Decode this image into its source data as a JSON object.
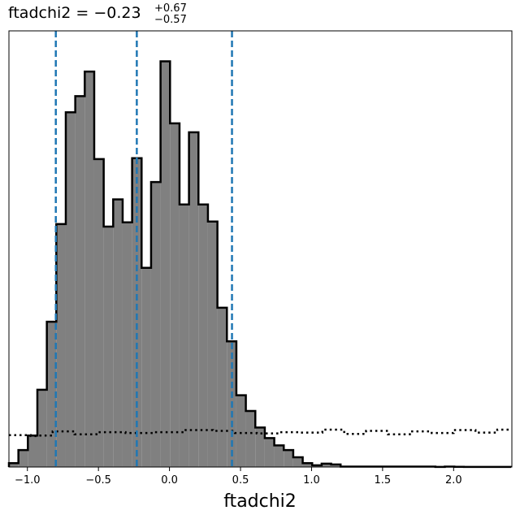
{
  "chart_data": {
    "type": "histogram",
    "title": {
      "main": "ftadchi2 = −0.23",
      "upper": "+0.67",
      "lower": "−0.57"
    },
    "xlabel": "ftadchi2",
    "ylabel": "",
    "xlim": [
      -1.13,
      2.41
    ],
    "ylim": [
      0,
      1.0
    ],
    "yticks_visible": false,
    "grid": false,
    "bin_width": 0.0667,
    "x_start": -1.13,
    "x_ticks": [
      -1.0,
      -0.5,
      0.0,
      0.5,
      1.0,
      1.5,
      2.0
    ],
    "x_tick_labels": [
      "−1.0",
      "−0.5",
      "0.0",
      "0.5",
      "1.0",
      "1.5",
      "2.0"
    ],
    "histogram": {
      "fill_color": "#808080",
      "edge_color": "#000000",
      "values": [
        0.009,
        0.04,
        0.074,
        0.182,
        0.342,
        0.572,
        0.835,
        0.873,
        0.931,
        0.725,
        0.566,
        0.63,
        0.576,
        0.727,
        0.469,
        0.671,
        0.955,
        0.809,
        0.618,
        0.788,
        0.618,
        0.578,
        0.375,
        0.296,
        0.169,
        0.132,
        0.093,
        0.068,
        0.051,
        0.04,
        0.023,
        0.009,
        0.004,
        0.008,
        0.006,
        0.001,
        0.001,
        0.001,
        0.001,
        0.001,
        0.001,
        0.001,
        0.001,
        0.001,
        0.001,
        0.0003,
        0.001,
        0.0005,
        0.0003,
        0.0003,
        0.0003,
        0.0003,
        0.0003
      ]
    },
    "prior": {
      "style": "dotted",
      "color": "#000000",
      "values": [
        0.075,
        0.075,
        0.075,
        0.073,
        0.074,
        0.074,
        0.084,
        0.084,
        0.084,
        0.077,
        0.077,
        0.077,
        0.082,
        0.082,
        0.082,
        0.082,
        0.08,
        0.08,
        0.08,
        0.08,
        0.082,
        0.082,
        0.082,
        0.082,
        0.087,
        0.087,
        0.087,
        0.087,
        0.085,
        0.085,
        0.085,
        0.08,
        0.08,
        0.08,
        0.079,
        0.079,
        0.079,
        0.082,
        0.082,
        0.082,
        0.081,
        0.081,
        0.081,
        0.088,
        0.088,
        0.088,
        0.078,
        0.078,
        0.078,
        0.085,
        0.085,
        0.085,
        0.077,
        0.077,
        0.077,
        0.084,
        0.084,
        0.084,
        0.08,
        0.08,
        0.08,
        0.087,
        0.087,
        0.087,
        0.081,
        0.081,
        0.081,
        0.088,
        0.088
      ]
    },
    "quantile_lines": {
      "color": "#1f77b4",
      "style": "dashed",
      "values": [
        -0.8,
        -0.23,
        0.44
      ]
    }
  }
}
